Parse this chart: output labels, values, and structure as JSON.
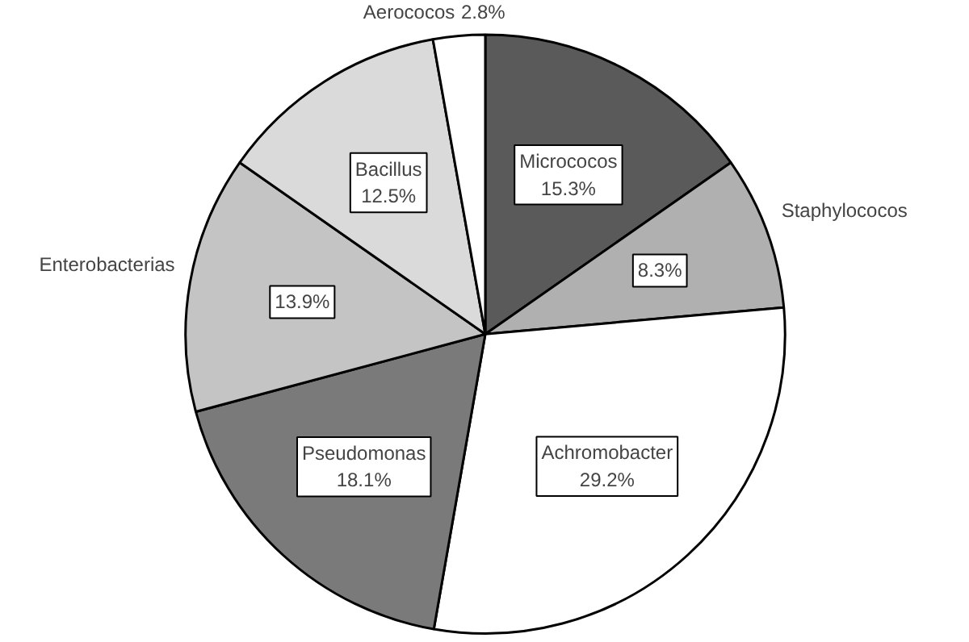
{
  "chart_data": {
    "type": "pie",
    "categories": [
      "Micrococos",
      "Staphylococos",
      "Achromobacter",
      "Pseudomonas",
      "Enterobacterias",
      "Bacillus",
      "Aerococos"
    ],
    "values": [
      15.3,
      8.3,
      29.2,
      18.1,
      13.9,
      12.5,
      2.8
    ],
    "colors": [
      "#5a5a5a",
      "#b0b0b0",
      "#ffffff",
      "#7a7a7a",
      "#c4c4c4",
      "#dadada",
      "#ffffff"
    ],
    "value_labels": [
      "15.3%",
      "8.3%",
      "29.2%",
      "18.1%",
      "13.9%",
      "12.5%",
      "2.8%"
    ]
  }
}
